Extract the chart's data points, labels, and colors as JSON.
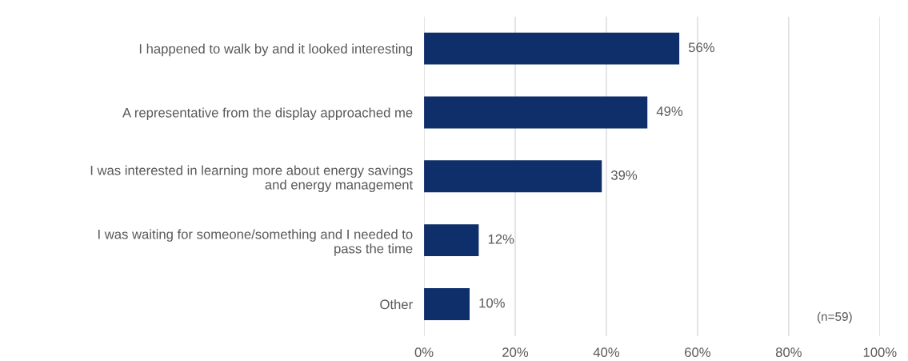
{
  "chart_data": {
    "type": "bar",
    "orientation": "horizontal",
    "categories": [
      "I happened to walk by and it looked interesting",
      "A representative from the display approached me",
      "I was interested in learning more about energy savings\nand energy management",
      "I was waiting for someone/something and I needed to\npass the time",
      "Other"
    ],
    "values": [
      56,
      49,
      39,
      12,
      10
    ],
    "color": "#0f2f6b",
    "value_labels": [
      "56%",
      "49%",
      "39%",
      "12%",
      "10%"
    ],
    "xlim": [
      0,
      100
    ],
    "xticks": [
      {
        "value": 0,
        "label": "0%"
      },
      {
        "value": 20,
        "label": "20%"
      },
      {
        "value": 40,
        "label": "40%"
      },
      {
        "value": 60,
        "label": "60%"
      },
      {
        "value": 80,
        "label": "80%"
      },
      {
        "value": 100,
        "label": "100%"
      }
    ],
    "grid": "x",
    "annotations": [
      "(n=59)"
    ]
  }
}
